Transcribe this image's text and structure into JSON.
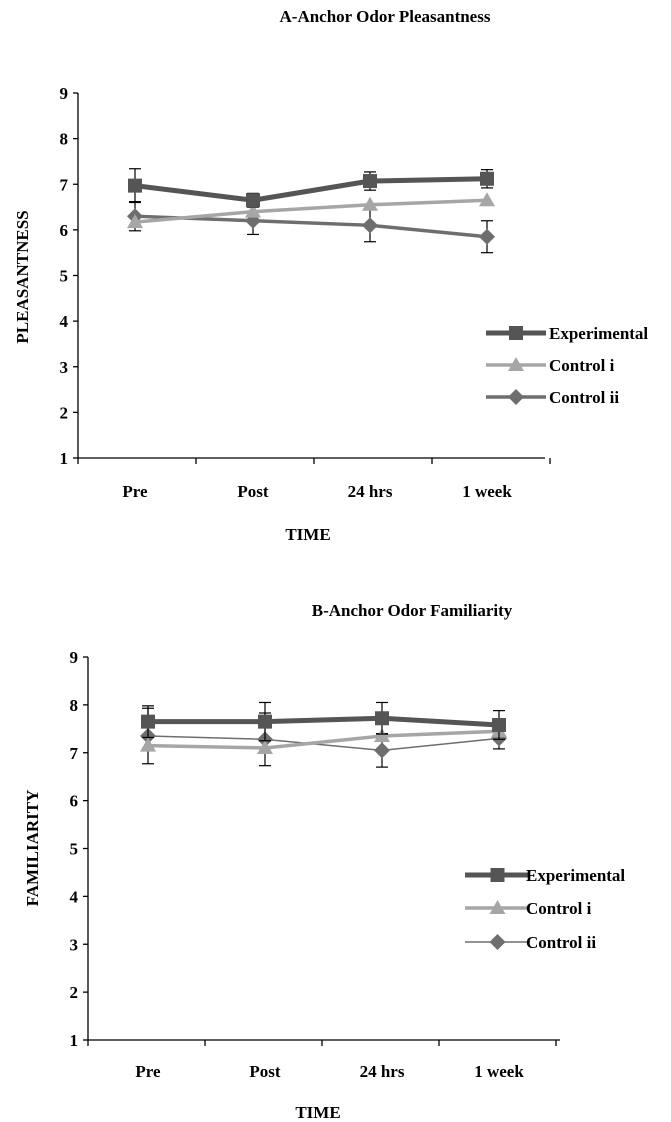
{
  "chart_data": [
    {
      "type": "line",
      "title": "A-Anchor Odor Pleasantness",
      "xlabel": "TIME",
      "ylabel": "PLEASANTNESS",
      "categories": [
        "Pre",
        "Post",
        "24 hrs",
        "1 week"
      ],
      "ylim": [
        1,
        9
      ],
      "yticks": [
        "1",
        "2",
        "3",
        "4",
        "5",
        "6",
        "7",
        "8",
        "9"
      ],
      "legend_position": "right",
      "series": [
        {
          "name": "Experimental",
          "marker": "square",
          "color": "#555555",
          "values": [
            6.97,
            6.65,
            7.07,
            7.12
          ],
          "errors": [
            0.37,
            0.15,
            0.2,
            0.2
          ]
        },
        {
          "name": "Control i",
          "marker": "triangle",
          "color": "#a6a6a6",
          "values": [
            6.17,
            6.4,
            6.55,
            6.65
          ],
          "errors": [
            0.0,
            0.0,
            0.0,
            0.0
          ]
        },
        {
          "name": "Control ii",
          "marker": "diamond",
          "color": "#6e6e6e",
          "values": [
            6.3,
            6.2,
            6.1,
            5.85
          ],
          "errors": [
            0.32,
            0.3,
            0.36,
            0.35
          ]
        }
      ]
    },
    {
      "type": "line",
      "title": "B-Anchor Odor Familiarity",
      "xlabel": "TIME",
      "ylabel": "FAMILIARITY",
      "categories": [
        "Pre",
        "Post",
        "24 hrs",
        "1 week"
      ],
      "ylim": [
        1,
        9
      ],
      "yticks": [
        "1",
        "2",
        "3",
        "4",
        "5",
        "6",
        "7",
        "8",
        "9"
      ],
      "legend_position": "right",
      "series": [
        {
          "name": "Experimental",
          "marker": "square",
          "color": "#555555",
          "values": [
            7.65,
            7.65,
            7.72,
            7.58
          ],
          "errors": [
            0.33,
            0.4,
            0.33,
            0.3
          ]
        },
        {
          "name": "Control i",
          "marker": "triangle",
          "color": "#a6a6a6",
          "values": [
            7.15,
            7.1,
            7.35,
            7.45
          ],
          "errors": [
            0.0,
            0.0,
            0.0,
            0.0
          ]
        },
        {
          "name": "Control ii",
          "marker": "diamond",
          "color": "#6e6e6e",
          "values": [
            7.35,
            7.28,
            7.05,
            7.3
          ],
          "errors": [
            0.58,
            0.55,
            0.35,
            0.22
          ]
        }
      ]
    }
  ]
}
